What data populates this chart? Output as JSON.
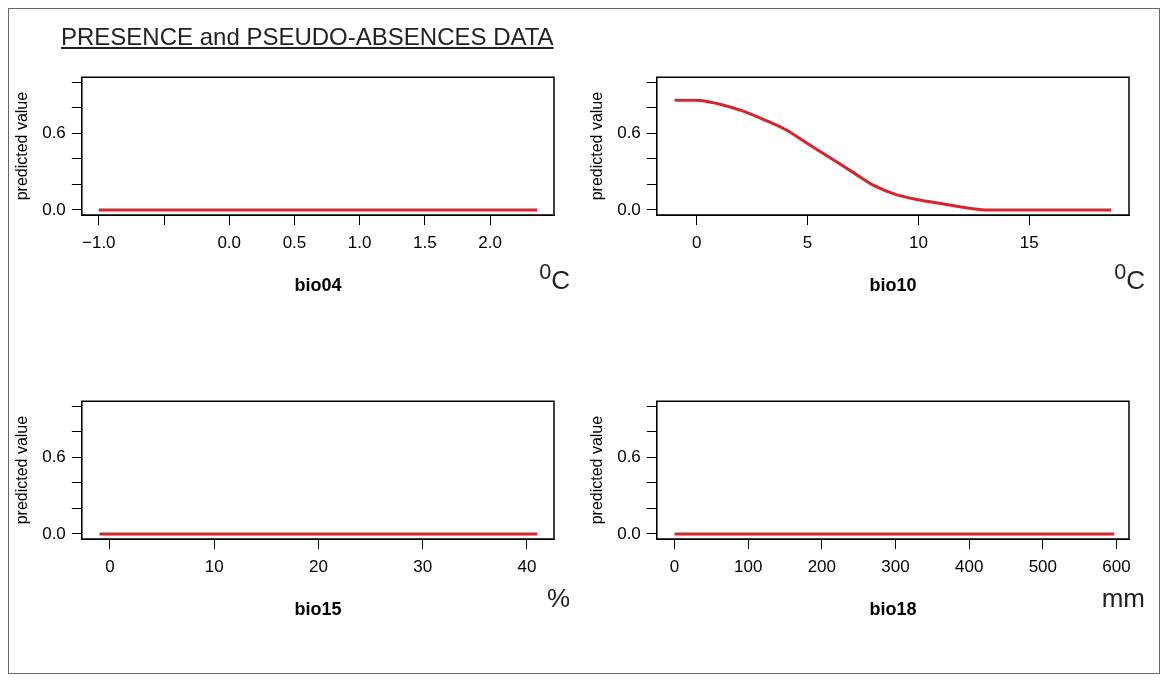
{
  "chart_data": [
    {
      "type": "line",
      "title": "PRESENCE and PSEUDO-ABSENCES DATA",
      "xlabel": "bio04",
      "ylabel": "predicted value",
      "annotations": [
        "$^{0}$C"
      ],
      "series": [
        {
          "color": "#d7262b",
          "x": [
            -1,
            0,
            1,
            2,
            2.36
          ],
          "values": [
            0,
            0,
            0,
            0,
            0
          ]
        }
      ],
      "xlim": [
        -1.13,
        2.49
      ],
      "xticks": [
        {
          "value": -1,
          "label": "−1.0"
        },
        {
          "value": -0.5,
          "label": null
        },
        {
          "value": 0,
          "label": "0.0"
        },
        0.5,
        {
          "value": 1,
          "label": "1.0"
        },
        1.5,
        {
          "value": 2,
          "label": "2.0"
        }
      ],
      "ylim": [
        -0.04,
        1.04
      ],
      "yticks": [
        {
          "value": 0,
          "label": "0.0"
        },
        {
          "value": 0.2,
          "label": null
        },
        {
          "value": 0.4,
          "label": null
        },
        {
          "value": 0.6,
          "label": "0.6"
        },
        {
          "value": 0.8,
          "label": null
        },
        {
          "value": 1,
          "label": null
        }
      ],
      "grid": false,
      "legend": false,
      "marker": "none",
      "line_style": "solid"
    },
    {
      "type": "line",
      "xlabel": "bio10",
      "ylabel": "predicted value",
      "annotations": [
        "$^{0}$C"
      ],
      "series": [
        {
          "color": "#d7262b",
          "x": [
            -1,
            0,
            1,
            2,
            3,
            4,
            5,
            6,
            7,
            8,
            9,
            10,
            11,
            12,
            13,
            18.7
          ],
          "values": [
            0.86,
            0.86,
            0.83,
            0.78,
            0.71,
            0.63,
            0.52,
            0.41,
            0.3,
            0.19,
            0.12,
            0.08,
            0.05,
            0.02,
            0,
            0
          ]
        }
      ],
      "xlim": [
        -1.8,
        19.5
      ],
      "xticks": [
        0,
        5,
        10,
        15
      ],
      "ylim": [
        -0.04,
        1.04
      ],
      "yticks": [
        {
          "value": 0,
          "label": "0.0"
        },
        {
          "value": 0.2,
          "label": null
        },
        {
          "value": 0.4,
          "label": null
        },
        {
          "value": 0.6,
          "label": "0.6"
        },
        {
          "value": 0.8,
          "label": null
        },
        {
          "value": 1,
          "label": null
        }
      ],
      "grid": false,
      "legend": false,
      "marker": "none",
      "line_style": "solid"
    },
    {
      "type": "line",
      "xlabel": "bio15",
      "ylabel": "predicted value",
      "annotations": [
        "%"
      ],
      "series": [
        {
          "color": "#d7262b",
          "x": [
            -1,
            10,
            20,
            30,
            41
          ],
          "values": [
            0,
            0,
            0,
            0,
            0
          ]
        }
      ],
      "xlim": [
        -2.7,
        42.6
      ],
      "xticks": [
        0,
        10,
        20,
        30,
        40
      ],
      "ylim": [
        -0.04,
        1.04
      ],
      "yticks": [
        {
          "value": 0,
          "label": "0.0"
        },
        {
          "value": 0.2,
          "label": null
        },
        {
          "value": 0.4,
          "label": null
        },
        {
          "value": 0.6,
          "label": "0.6"
        },
        {
          "value": 0.8,
          "label": null
        },
        {
          "value": 1,
          "label": null
        }
      ],
      "grid": false,
      "legend": false,
      "marker": "none",
      "line_style": "solid"
    },
    {
      "type": "line",
      "xlabel": "bio18",
      "ylabel": "predicted value",
      "annotations": [
        "mm"
      ],
      "series": [
        {
          "color": "#d7262b",
          "x": [
            0,
            200,
            400,
            597
          ],
          "values": [
            0,
            0,
            0,
            0
          ]
        }
      ],
      "xlim": [
        -24,
        617
      ],
      "xticks": [
        0,
        100,
        200,
        300,
        400,
        500,
        600
      ],
      "ylim": [
        -0.04,
        1.04
      ],
      "yticks": [
        {
          "value": 0,
          "label": "0.0"
        },
        {
          "value": 0.2,
          "label": null
        },
        {
          "value": 0.4,
          "label": null
        },
        {
          "value": 0.6,
          "label": "0.6"
        },
        {
          "value": 0.8,
          "label": null
        },
        {
          "value": 1,
          "label": null
        }
      ],
      "grid": false,
      "legend": false,
      "marker": "none",
      "line_style": "solid"
    }
  ]
}
